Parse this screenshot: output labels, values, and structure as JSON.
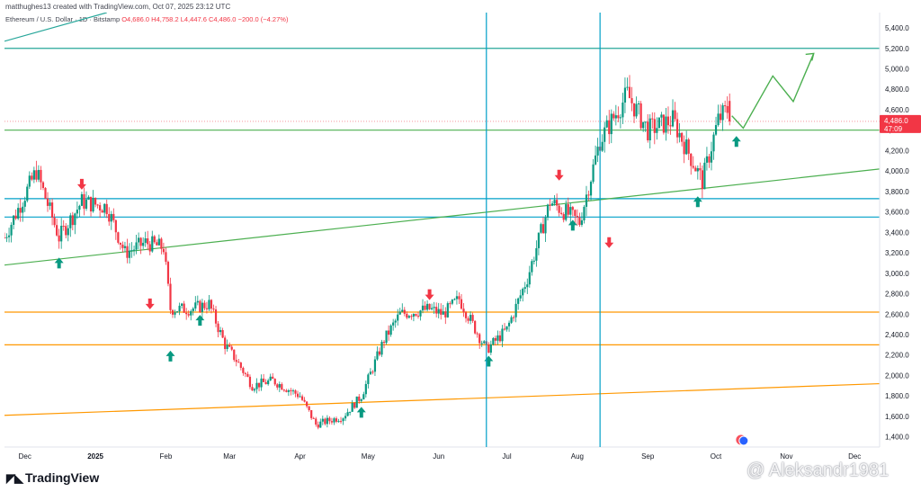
{
  "header": {
    "text": "matthughes13 created with TradingView.com, Oct 07, 2025 23:12 UTC"
  },
  "ohlc": {
    "symbol": "Ethereum / U.S. Dollar · 1D · Bitstamp",
    "open": "O4,686.0",
    "high": "H4,758.2",
    "low": "L4,447.6",
    "close": "C4,486.0",
    "change": "−200.0 (−4.27%)"
  },
  "price_badge": {
    "price": "4,486.0",
    "countdown": "47:09",
    "color": "#f23645"
  },
  "brand": {
    "label": "TradingView"
  },
  "watermark": {
    "text": "@ Aleksandr1981"
  },
  "colors": {
    "up": "#089981",
    "down": "#f23645",
    "cyan": "#00a0c8",
    "green": "#4caf50",
    "orange": "#ff9800",
    "teal": "#26a69a"
  },
  "chart_data": {
    "type": "candlestick",
    "x_axis_labels": [
      "Dec",
      "2025",
      "Feb",
      "Mar",
      "Apr",
      "May",
      "Jun",
      "Jul",
      "Aug",
      "Sep",
      "Oct",
      "Nov",
      "Dec"
    ],
    "y_axis_labels": [
      "5,400.0",
      "5,200.0",
      "5,000.0",
      "4,800.0",
      "4,600.0",
      "4,400.0",
      "4,200.0",
      "4,000.0",
      "3,800.0",
      "3,600.0",
      "3,400.0",
      "3,200.0",
      "3,000.0",
      "2,800.0",
      "2,600.0",
      "2,400.0",
      "2,200.0",
      "2,000.0",
      "1,800.0",
      "1,600.0",
      "1,400.0"
    ],
    "ylim": [
      1300,
      5550
    ],
    "x_range": [
      "2024-11-22",
      "2025-12-12"
    ],
    "horizontal_lines": [
      {
        "price": 5200,
        "color": "#26a69a"
      },
      {
        "price": 4400,
        "color": "#4caf50"
      },
      {
        "price": 3730,
        "color": "#00a0c8"
      },
      {
        "price": 3550,
        "color": "#00a0c8"
      },
      {
        "price": 2620,
        "color": "#ff9800"
      },
      {
        "price": 2300,
        "color": "#ff9800"
      }
    ],
    "vertical_lines": [
      {
        "date": "2025-06-22",
        "color": "#00a0c8"
      },
      {
        "date": "2025-08-11",
        "color": "#00a0c8"
      }
    ],
    "trend_lines": [
      {
        "from": [
          "2024-11-22",
          3080
        ],
        "to": [
          "2025-12-12",
          4020
        ],
        "color": "#4caf50"
      },
      {
        "from": [
          "2024-11-22",
          1610
        ],
        "to": [
          "2025-12-12",
          1920
        ],
        "color": "#ff9800"
      },
      {
        "from": [
          "2024-11-22",
          5270
        ],
        "to": [
          "2025-01-06",
          5550
        ],
        "color": "#26a69a"
      }
    ],
    "projection_path": [
      [
        "2025-10-08",
        4540
      ],
      [
        "2025-10-13",
        4420
      ],
      [
        "2025-10-26",
        4930
      ],
      [
        "2025-11-04",
        4680
      ],
      [
        "2025-11-13",
        5150
      ]
    ],
    "up_arrows": [
      [
        "2024-12-16",
        3100
      ],
      [
        "2025-02-03",
        2190
      ],
      [
        "2025-02-16",
        2540
      ],
      [
        "2025-04-28",
        1640
      ],
      [
        "2025-06-23",
        2140
      ],
      [
        "2025-07-30",
        3470
      ],
      [
        "2025-09-23",
        3700
      ],
      [
        "2025-10-10",
        4290
      ]
    ],
    "down_arrows": [
      [
        "2024-12-26",
        3870
      ],
      [
        "2025-01-25",
        2700
      ],
      [
        "2025-05-28",
        2790
      ],
      [
        "2025-07-24",
        3960
      ],
      [
        "2025-08-15",
        3300
      ]
    ],
    "anchors": [
      [
        "2024-11-22",
        3350
      ],
      [
        "2024-12-06",
        4000
      ],
      [
        "2024-12-16",
        3350
      ],
      [
        "2024-12-26",
        3700
      ],
      [
        "2025-01-06",
        3650
      ],
      [
        "2025-01-14",
        3200
      ],
      [
        "2025-01-23",
        3300
      ],
      [
        "2025-01-31",
        3250
      ],
      [
        "2025-02-03",
        2650
      ],
      [
        "2025-02-12",
        2650
      ],
      [
        "2025-02-20",
        2700
      ],
      [
        "2025-02-27",
        2300
      ],
      [
        "2025-03-04",
        2150
      ],
      [
        "2025-03-11",
        1900
      ],
      [
        "2025-03-20",
        1950
      ],
      [
        "2025-04-01",
        1800
      ],
      [
        "2025-04-08",
        1520
      ],
      [
        "2025-04-20",
        1600
      ],
      [
        "2025-04-28",
        1800
      ],
      [
        "2025-05-08",
        2350
      ],
      [
        "2025-05-15",
        2600
      ],
      [
        "2025-05-28",
        2650
      ],
      [
        "2025-06-03",
        2600
      ],
      [
        "2025-06-10",
        2750
      ],
      [
        "2025-06-22",
        2250
      ],
      [
        "2025-07-01",
        2450
      ],
      [
        "2025-07-10",
        2950
      ],
      [
        "2025-07-20",
        3700
      ],
      [
        "2025-08-02",
        3500
      ],
      [
        "2025-08-11",
        4300
      ],
      [
        "2025-08-23",
        4750
      ],
      [
        "2025-09-01",
        4400
      ],
      [
        "2025-09-12",
        4500
      ],
      [
        "2025-09-25",
        3900
      ],
      [
        "2025-10-02",
        4500
      ],
      [
        "2025-10-06",
        4600
      ],
      [
        "2025-10-07",
        4486
      ]
    ]
  }
}
